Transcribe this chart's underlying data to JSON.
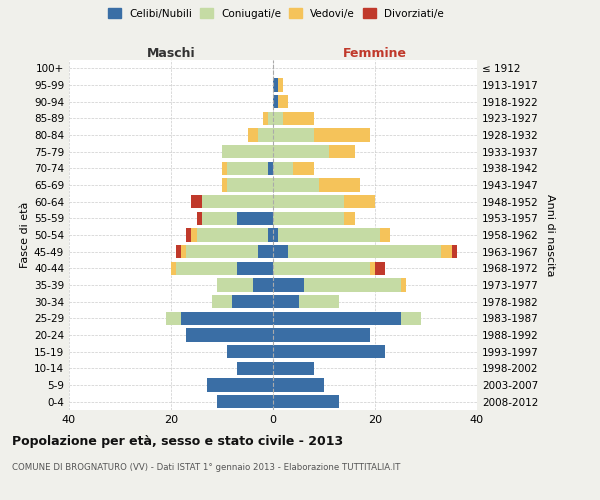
{
  "age_groups": [
    "0-4",
    "5-9",
    "10-14",
    "15-19",
    "20-24",
    "25-29",
    "30-34",
    "35-39",
    "40-44",
    "45-49",
    "50-54",
    "55-59",
    "60-64",
    "65-69",
    "70-74",
    "75-79",
    "80-84",
    "85-89",
    "90-94",
    "95-99",
    "100+"
  ],
  "birth_years": [
    "2008-2012",
    "2003-2007",
    "1998-2002",
    "1993-1997",
    "1988-1992",
    "1983-1987",
    "1978-1982",
    "1973-1977",
    "1968-1972",
    "1963-1967",
    "1958-1962",
    "1953-1957",
    "1948-1952",
    "1943-1947",
    "1938-1942",
    "1933-1937",
    "1928-1932",
    "1923-1927",
    "1918-1922",
    "1913-1917",
    "≤ 1912"
  ],
  "males": {
    "celibi": [
      11,
      13,
      7,
      9,
      17,
      18,
      8,
      4,
      7,
      3,
      1,
      7,
      0,
      0,
      1,
      0,
      0,
      0,
      0,
      0,
      0
    ],
    "coniugati": [
      0,
      0,
      0,
      0,
      0,
      3,
      4,
      7,
      12,
      14,
      14,
      7,
      14,
      9,
      8,
      10,
      3,
      1,
      0,
      0,
      0
    ],
    "vedovi": [
      0,
      0,
      0,
      0,
      0,
      0,
      0,
      0,
      1,
      1,
      1,
      0,
      0,
      1,
      1,
      0,
      2,
      1,
      0,
      0,
      0
    ],
    "divorziati": [
      0,
      0,
      0,
      0,
      0,
      0,
      0,
      0,
      0,
      1,
      1,
      1,
      2,
      0,
      0,
      0,
      0,
      0,
      0,
      0,
      0
    ]
  },
  "females": {
    "nubili": [
      13,
      10,
      8,
      22,
      19,
      25,
      5,
      6,
      0,
      3,
      1,
      0,
      0,
      0,
      0,
      0,
      0,
      0,
      1,
      1,
      0
    ],
    "coniugate": [
      0,
      0,
      0,
      0,
      0,
      4,
      8,
      19,
      19,
      30,
      20,
      14,
      14,
      9,
      4,
      11,
      8,
      2,
      0,
      0,
      0
    ],
    "vedove": [
      0,
      0,
      0,
      0,
      0,
      0,
      0,
      1,
      1,
      2,
      2,
      2,
      6,
      8,
      4,
      5,
      11,
      6,
      2,
      1,
      0
    ],
    "divorziate": [
      0,
      0,
      0,
      0,
      0,
      0,
      0,
      0,
      2,
      1,
      0,
      0,
      0,
      0,
      0,
      0,
      0,
      0,
      0,
      0,
      0
    ]
  },
  "colors": {
    "celibi": "#3a6ea5",
    "coniugati": "#c5dba4",
    "vedovi": "#f5c35a",
    "divorziati": "#c0392b"
  },
  "xlim": 40,
  "title": "Popolazione per età, sesso e stato civile - 2013",
  "subtitle": "COMUNE DI BROGNATURO (VV) - Dati ISTAT 1° gennaio 2013 - Elaborazione TUTTITALIA.IT",
  "ylabel_left": "Fasce di età",
  "ylabel_right": "Anni di nascita",
  "xlabel_left": "Maschi",
  "xlabel_right": "Femmine",
  "bg_color": "#f0f0eb",
  "plot_bg_color": "#ffffff"
}
